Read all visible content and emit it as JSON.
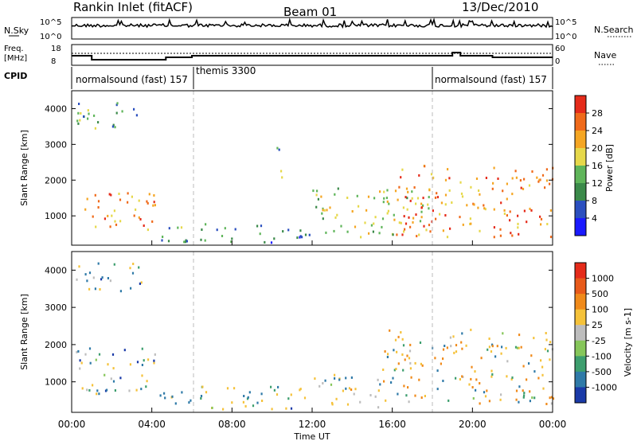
{
  "header": {
    "station": "Rankin Inlet (fitACF)",
    "beam": "Beam 01",
    "date": "13/Dec/2010"
  },
  "noise_panel": {
    "left_label": "N.Sky",
    "left_ticks": [
      "10^5",
      "10^0"
    ],
    "right_label": "N.Search",
    "right_ticks": [
      "10^5",
      "10^0"
    ]
  },
  "freq_panel": {
    "left_label_line1": "Freq.",
    "left_label_line2": "[MHz]",
    "left_ticks": [
      "18",
      "8"
    ],
    "right_label": "Nave",
    "right_ticks": [
      "60",
      "0"
    ]
  },
  "cpid_panel": {
    "label": "CPID",
    "segments": [
      {
        "name": "normalsound (fast) 157",
        "start_hour": 0,
        "end_hour": 6
      },
      {
        "name": "themis 3300",
        "start_hour": 6,
        "end_hour": 18
      },
      {
        "name": "normalsound (fast) 157",
        "start_hour": 18,
        "end_hour": 24
      }
    ]
  },
  "power_panel": {
    "ylabel": "Slant Range [km]",
    "yticks": [
      "4000",
      "3000",
      "2000",
      "1000"
    ],
    "colorbar_label": "Power [dB]",
    "colorbar_ticks": [
      "28",
      "24",
      "20",
      "16",
      "12",
      "8",
      "4"
    ]
  },
  "velocity_panel": {
    "ylabel": "Slant Range [km]",
    "yticks": [
      "4000",
      "3000",
      "2000",
      "1000"
    ],
    "colorbar_label": "Velocity [m s-1]",
    "colorbar_ticks": [
      "1000",
      "500",
      "100",
      "25",
      "-25",
      "-100",
      "-500",
      "-1000"
    ]
  },
  "xaxis": {
    "label": "Time UT",
    "ticks": [
      "00:00",
      "04:00",
      "08:00",
      "12:00",
      "16:00",
      "20:00",
      "00:00"
    ]
  },
  "chart_data": {
    "type": "heatmap",
    "title": "Rankin Inlet (fitACF) Beam 01 13/Dec/2010",
    "xlabel": "Time UT",
    "ylabel": "Slant Range [km]",
    "xlim": [
      0,
      24
    ],
    "ylim": [
      180,
      4500
    ],
    "power_colors": [
      "#1a1aff",
      "#2b4fbf",
      "#3b8a4a",
      "#5fb55a",
      "#e6d84a",
      "#f5a623",
      "#f06a1a",
      "#e52b1a"
    ],
    "velocity_colors": [
      "#1a3aa8",
      "#2f7aa8",
      "#3d9e6e",
      "#86c65a",
      "#bdbdbd",
      "#f5c23a",
      "#f08a1a",
      "#e85a1a",
      "#e52b1a"
    ],
    "power_regions": [
      {
        "t0": 0.2,
        "t1": 4.2,
        "r0": 600,
        "r1": 1700,
        "mean_db": 24
      },
      {
        "t0": 0.2,
        "t1": 3.6,
        "r0": 3400,
        "r1": 4200,
        "mean_db": 12
      },
      {
        "t0": 4.3,
        "t1": 12,
        "r0": 250,
        "r1": 800,
        "mean_db": 10
      },
      {
        "t0": 10.2,
        "t1": 10.7,
        "r0": 2000,
        "r1": 3000,
        "mean_db": 12
      },
      {
        "t0": 12,
        "t1": 18,
        "r0": 400,
        "r1": 1800,
        "mean_db": 16
      },
      {
        "t0": 16,
        "t1": 24,
        "r0": 400,
        "r1": 2400,
        "mean_db": 24
      }
    ],
    "velocity_regions": [
      {
        "t0": 0.2,
        "t1": 4.2,
        "r0": 600,
        "r1": 1900,
        "mean_ms": 150
      },
      {
        "t0": 0.2,
        "t1": 3.6,
        "r0": 3400,
        "r1": 4200,
        "mean_ms": 60
      },
      {
        "t0": 4.3,
        "t1": 12,
        "r0": 250,
        "r1": 900,
        "mean_ms": 20
      },
      {
        "t0": 12,
        "t1": 16,
        "r0": 300,
        "r1": 1200,
        "mean_ms": -30
      },
      {
        "t0": 15.5,
        "t1": 24,
        "r0": 400,
        "r1": 2400,
        "mean_ms": -300
      }
    ]
  }
}
